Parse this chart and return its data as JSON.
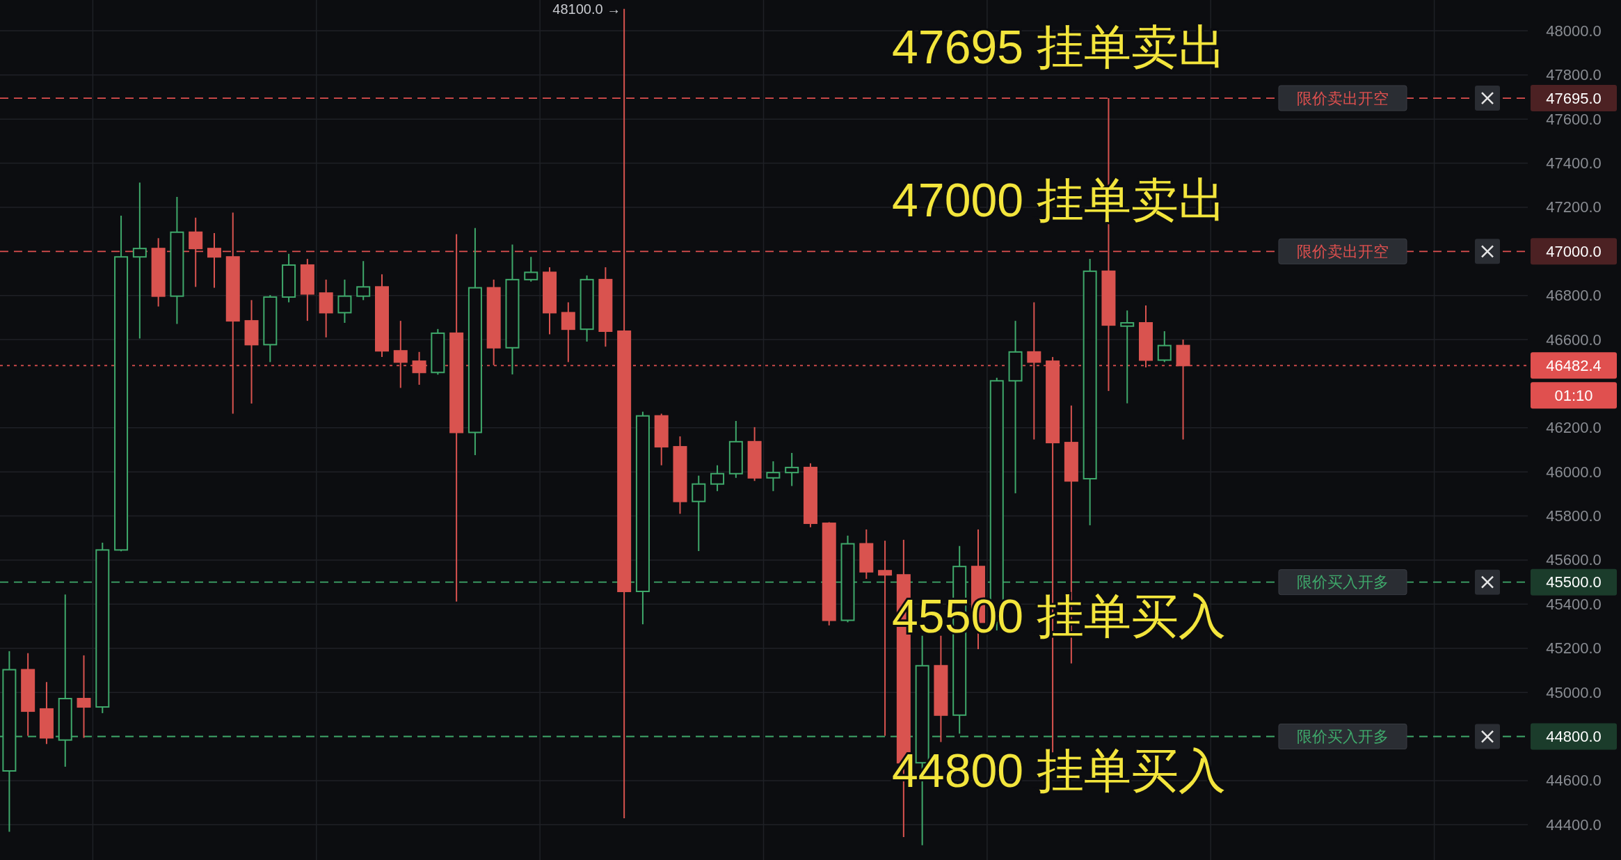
{
  "chart_data": {
    "type": "candlestick",
    "categories": [
      null,
      null,
      null,
      null,
      null,
      null,
      null,
      null,
      null,
      null,
      null,
      null,
      null,
      null,
      null,
      null,
      null,
      null,
      null,
      null,
      null,
      null,
      null,
      null,
      null,
      null,
      null,
      null,
      null,
      null,
      null,
      null,
      null,
      null,
      null,
      null,
      null,
      null,
      null,
      null,
      null,
      null,
      null,
      null,
      null,
      null,
      null,
      null,
      null,
      null,
      null,
      null,
      null,
      null,
      null,
      null,
      null,
      null,
      null,
      null,
      null,
      null,
      null,
      null,
      null,
      null,
      null,
      null,
      null,
      null,
      null,
      null,
      null,
      null,
      null,
      null,
      null,
      null,
      null,
      null,
      null,
      null
    ],
    "ohlc": [
      [
        44644,
        45187,
        44368,
        45103
      ],
      [
        45103,
        45178,
        44803,
        44915
      ],
      [
        44925,
        45047,
        44766,
        44794
      ],
      [
        44784,
        45444,
        44663,
        44972
      ],
      [
        44972,
        45168,
        44794,
        44934
      ],
      [
        44934,
        45679,
        44906,
        45646
      ],
      [
        45646,
        47162,
        45640,
        46975
      ],
      [
        46975,
        47312,
        46605,
        47013
      ],
      [
        47013,
        47060,
        46750,
        46797
      ],
      [
        46797,
        47247,
        46671,
        47087
      ],
      [
        47087,
        47153,
        46839,
        47013
      ],
      [
        47013,
        47083,
        46835,
        46975
      ],
      [
        46975,
        47176,
        46264,
        46685
      ],
      [
        46685,
        46779,
        46310,
        46577
      ],
      [
        46577,
        46802,
        46498,
        46793
      ],
      [
        46793,
        46989,
        46769,
        46938
      ],
      [
        46938,
        46966,
        46685,
        46807
      ],
      [
        46811,
        46872,
        46610,
        46722
      ],
      [
        46722,
        46872,
        46676,
        46797
      ],
      [
        46797,
        46956,
        46779,
        46839
      ],
      [
        46839,
        46896,
        46521,
        46549
      ],
      [
        46549,
        46685,
        46381,
        46498
      ],
      [
        46502,
        46544,
        46395,
        46451
      ],
      [
        46451,
        46648,
        46441,
        46629
      ],
      [
        46629,
        47078,
        45412,
        46179
      ],
      [
        46179,
        47106,
        46076,
        46835
      ],
      [
        46835,
        46872,
        46484,
        46563
      ],
      [
        46563,
        47031,
        46442,
        46872
      ],
      [
        46872,
        46975,
        46863,
        46905
      ],
      [
        46905,
        46928,
        46624,
        46722
      ],
      [
        46722,
        46769,
        46498,
        46647
      ],
      [
        46647,
        46891,
        46591,
        46872
      ],
      [
        46872,
        46928,
        46568,
        46638
      ],
      [
        46638,
        48100,
        44429,
        45458
      ],
      [
        45458,
        46273,
        45309,
        46254
      ],
      [
        46254,
        46264,
        46030,
        46114
      ],
      [
        46114,
        46161,
        45810,
        45866
      ],
      [
        45866,
        45983,
        45641,
        45945
      ],
      [
        45945,
        46030,
        45913,
        45992
      ],
      [
        45992,
        46231,
        45973,
        46137
      ],
      [
        46137,
        46203,
        45959,
        45973
      ],
      [
        45973,
        46048,
        45913,
        45997
      ],
      [
        45997,
        46086,
        45936,
        46020
      ],
      [
        46020,
        46039,
        45749,
        45767
      ],
      [
        45767,
        45772,
        45304,
        45327
      ],
      [
        45327,
        45711,
        45318,
        45674
      ],
      [
        45674,
        45739,
        45515,
        45547
      ],
      [
        45552,
        45688,
        44803,
        45533
      ],
      [
        45533,
        45692,
        44344,
        44681
      ],
      [
        44681,
        45257,
        44307,
        45121
      ],
      [
        45121,
        45257,
        44775,
        44897
      ],
      [
        44897,
        45664,
        44813,
        45571
      ],
      [
        45571,
        45739,
        45196,
        45318
      ],
      [
        45318,
        46427,
        45281,
        46413
      ],
      [
        46413,
        46685,
        45903,
        46544
      ],
      [
        46544,
        46769,
        46147,
        46498
      ],
      [
        46502,
        46521,
        44728,
        46133
      ],
      [
        46133,
        46301,
        45131,
        45959
      ],
      [
        45969,
        46966,
        45758,
        46910
      ],
      [
        46910,
        47695,
        46367,
        46666
      ],
      [
        46661,
        46732,
        46311,
        46676
      ],
      [
        46676,
        46755,
        46474,
        46507
      ],
      [
        46507,
        46638,
        46498,
        46573
      ],
      [
        46573,
        46600,
        46147,
        46482.4
      ],
      null,
      null,
      null,
      null,
      null,
      null,
      null,
      null,
      null,
      null,
      null,
      null,
      null,
      null,
      null,
      null,
      null,
      null
    ],
    "ylim": [
      44240,
      48140
    ],
    "yticks": [
      {
        "value": 44400,
        "label": "44400.0"
      },
      {
        "value": 44600,
        "label": "44600.0"
      },
      {
        "value": 45000,
        "label": "45000.0"
      },
      {
        "value": 45200,
        "label": "45200.0"
      },
      {
        "value": 45400,
        "label": "45400.0"
      },
      {
        "value": 45600,
        "label": "45600.0"
      },
      {
        "value": 45800,
        "label": "45800.0"
      },
      {
        "value": 46000,
        "label": "46000.0"
      },
      {
        "value": 46200,
        "label": "46200.0"
      },
      {
        "value": 46600,
        "label": "46600.0"
      },
      {
        "value": 46800,
        "label": "46800.0"
      },
      {
        "value": 47200,
        "label": "47200.0"
      },
      {
        "value": 47400,
        "label": "47400.0"
      },
      {
        "value": 47600,
        "label": "47600.0"
      },
      {
        "value": 47800,
        "label": "47800.0"
      },
      {
        "value": 48000,
        "label": "48000.0"
      }
    ],
    "grid": true,
    "ref_lines": [
      {
        "axis": "y",
        "value": 47695,
        "label": "限价卖出开空",
        "color": "#e0504f",
        "line_style": "dashed"
      },
      {
        "axis": "y",
        "value": 47000,
        "label": "限价卖出开空",
        "color": "#e0504f",
        "line_style": "dashed"
      },
      {
        "axis": "y",
        "value": 46482.4,
        "color": "#e0504f",
        "line_style": "dotted"
      },
      {
        "axis": "y",
        "value": 45500,
        "label": "限价买入开多",
        "color": "#3fa96b",
        "line_style": "dashed"
      },
      {
        "axis": "y",
        "value": 44800,
        "label": "限价买入开多",
        "color": "#3fa96b",
        "line_style": "dashed"
      }
    ],
    "annotations": [
      "48100.0 →",
      "47695 挂单卖出",
      "47000 挂单卖出",
      "45500 挂单买入",
      "44800 挂单买入",
      "47695.0",
      "47000.0",
      "46482.4",
      "45500.0",
      "44800.0",
      "01:10"
    ]
  }
}
